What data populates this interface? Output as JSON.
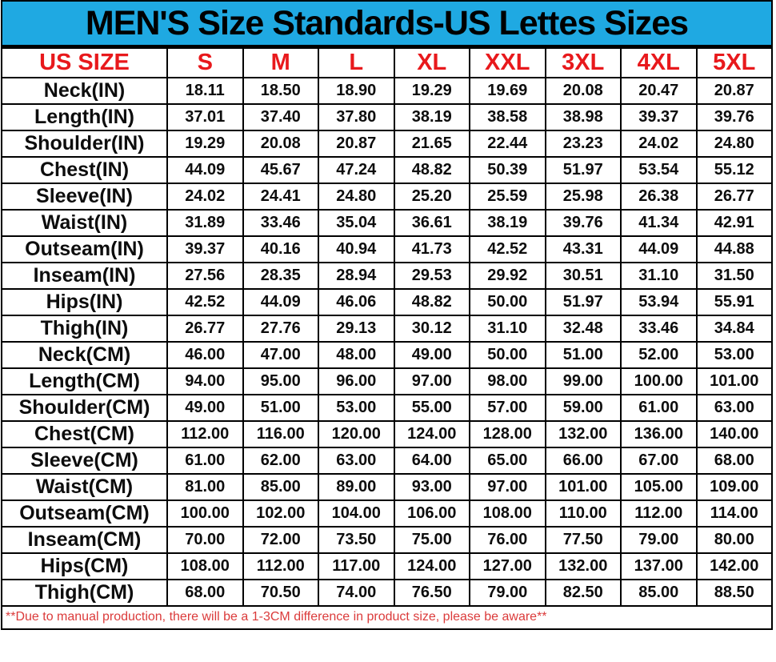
{
  "colors": {
    "title_bg": "#1FA9E2",
    "header_text": "#E8191C",
    "note_text": "#DB3B3B",
    "grid": "#000000",
    "cell_text": "#0d0d0d"
  },
  "chart_data": {
    "type": "table",
    "title": "MEN'S Size Standards-US Lettes Sizes",
    "columns": [
      "US SIZE",
      "S",
      "M",
      "L",
      "XL",
      "XXL",
      "3XL",
      "4XL",
      "5XL"
    ],
    "rows": [
      [
        "Neck(IN)",
        "18.11",
        "18.50",
        "18.90",
        "19.29",
        "19.69",
        "20.08",
        "20.47",
        "20.87"
      ],
      [
        "Length(IN)",
        "37.01",
        "37.40",
        "37.80",
        "38.19",
        "38.58",
        "38.98",
        "39.37",
        "39.76"
      ],
      [
        "Shoulder(IN)",
        "19.29",
        "20.08",
        "20.87",
        "21.65",
        "22.44",
        "23.23",
        "24.02",
        "24.80"
      ],
      [
        "Chest(IN)",
        "44.09",
        "45.67",
        "47.24",
        "48.82",
        "50.39",
        "51.97",
        "53.54",
        "55.12"
      ],
      [
        "Sleeve(IN)",
        "24.02",
        "24.41",
        "24.80",
        "25.20",
        "25.59",
        "25.98",
        "26.38",
        "26.77"
      ],
      [
        "Waist(IN)",
        "31.89",
        "33.46",
        "35.04",
        "36.61",
        "38.19",
        "39.76",
        "41.34",
        "42.91"
      ],
      [
        "Outseam(IN)",
        "39.37",
        "40.16",
        "40.94",
        "41.73",
        "42.52",
        "43.31",
        "44.09",
        "44.88"
      ],
      [
        "Inseam(IN)",
        "27.56",
        "28.35",
        "28.94",
        "29.53",
        "29.92",
        "30.51",
        "31.10",
        "31.50"
      ],
      [
        "Hips(IN)",
        "42.52",
        "44.09",
        "46.06",
        "48.82",
        "50.00",
        "51.97",
        "53.94",
        "55.91"
      ],
      [
        "Thigh(IN)",
        "26.77",
        "27.76",
        "29.13",
        "30.12",
        "31.10",
        "32.48",
        "33.46",
        "34.84"
      ],
      [
        "Neck(CM)",
        "46.00",
        "47.00",
        "48.00",
        "49.00",
        "50.00",
        "51.00",
        "52.00",
        "53.00"
      ],
      [
        "Length(CM)",
        "94.00",
        "95.00",
        "96.00",
        "97.00",
        "98.00",
        "99.00",
        "100.00",
        "101.00"
      ],
      [
        "Shoulder(CM)",
        "49.00",
        "51.00",
        "53.00",
        "55.00",
        "57.00",
        "59.00",
        "61.00",
        "63.00"
      ],
      [
        "Chest(CM)",
        "112.00",
        "116.00",
        "120.00",
        "124.00",
        "128.00",
        "132.00",
        "136.00",
        "140.00"
      ],
      [
        "Sleeve(CM)",
        "61.00",
        "62.00",
        "63.00",
        "64.00",
        "65.00",
        "66.00",
        "67.00",
        "68.00"
      ],
      [
        "Waist(CM)",
        "81.00",
        "85.00",
        "89.00",
        "93.00",
        "97.00",
        "101.00",
        "105.00",
        "109.00"
      ],
      [
        "Outseam(CM)",
        "100.00",
        "102.00",
        "104.00",
        "106.00",
        "108.00",
        "110.00",
        "112.00",
        "114.00"
      ],
      [
        "Inseam(CM)",
        "70.00",
        "72.00",
        "73.50",
        "75.00",
        "76.00",
        "77.50",
        "79.00",
        "80.00"
      ],
      [
        "Hips(CM)",
        "108.00",
        "112.00",
        "117.00",
        "124.00",
        "127.00",
        "132.00",
        "137.00",
        "142.00"
      ],
      [
        "Thigh(CM)",
        "68.00",
        "70.50",
        "74.00",
        "76.50",
        "79.00",
        "82.50",
        "85.00",
        "88.50"
      ]
    ],
    "footnote": "**Due to manual production, there will be a 1-3CM difference in product size, please be aware**"
  }
}
